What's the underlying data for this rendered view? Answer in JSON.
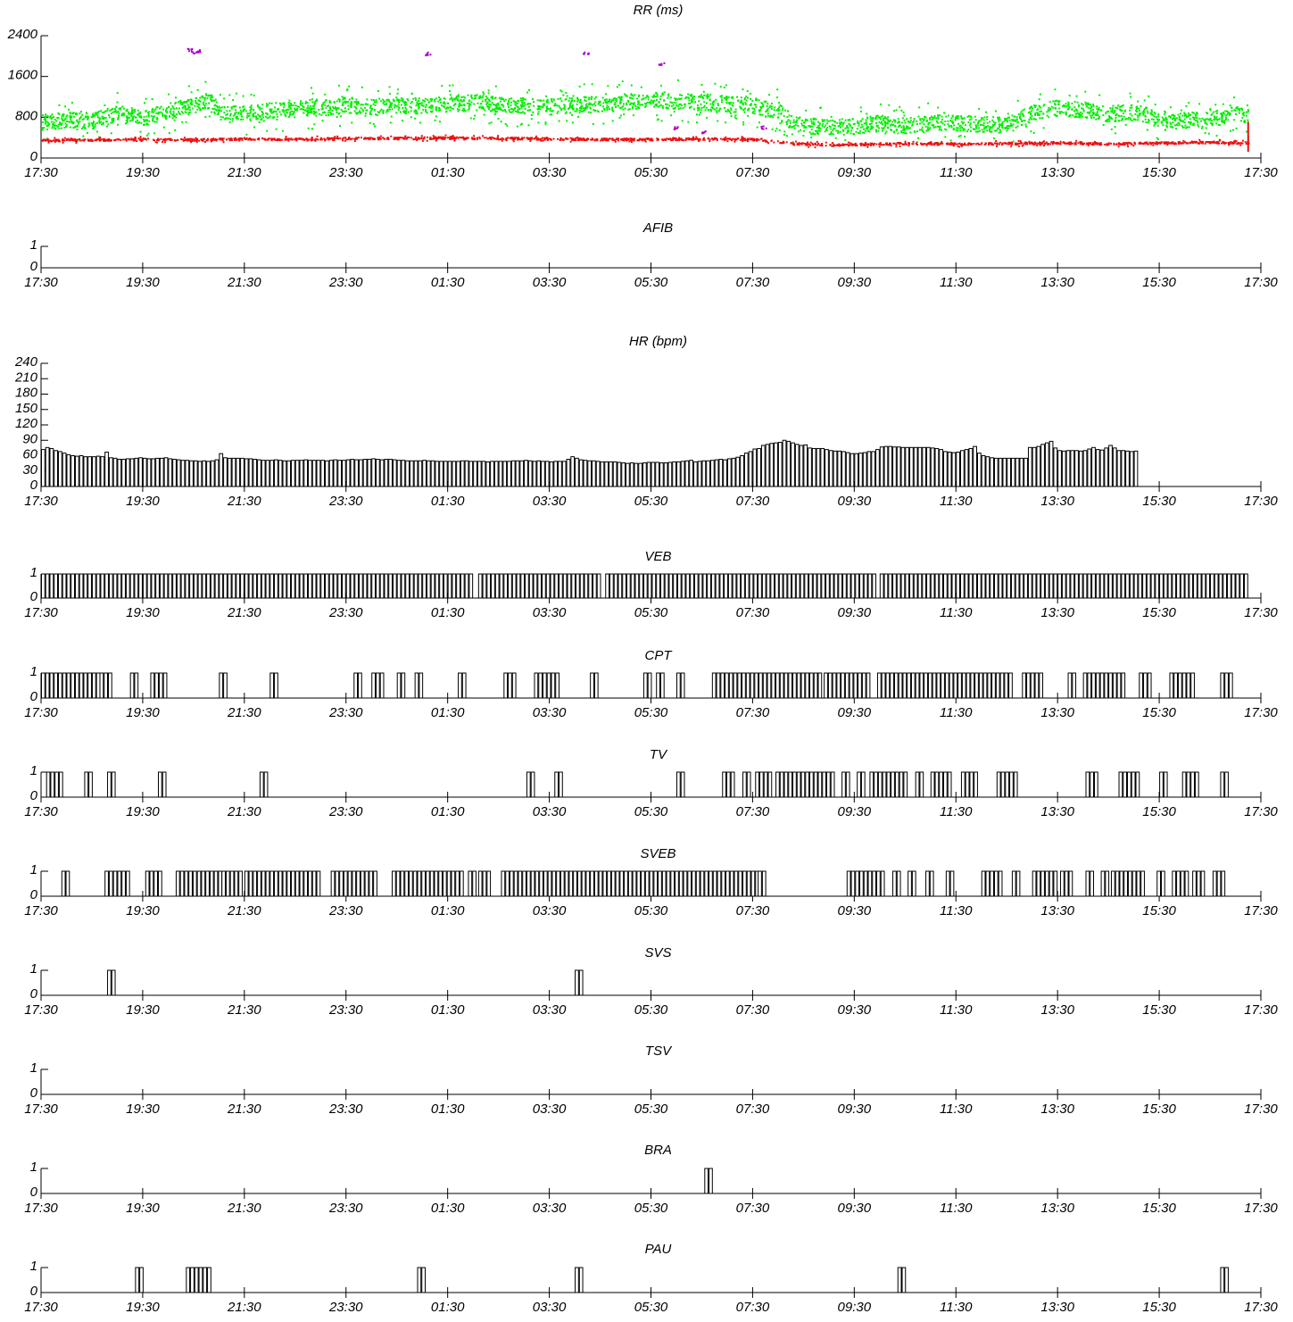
{
  "chart_data": [
    {
      "type": "scatter",
      "title": "RR (ms)",
      "ylim": [
        0,
        2400
      ],
      "yticks": [
        "0",
        "800",
        "1600",
        "2400"
      ],
      "xticks": [
        "17:30",
        "19:30",
        "21:30",
        "23:30",
        "01:30",
        "03:30",
        "05:30",
        "07:30",
        "09:30",
        "11:30",
        "13:30",
        "15:30",
        "17:30"
      ],
      "xlim_hours": [
        0,
        24
      ],
      "data_end_hour": 23.75,
      "colors": {
        "normal": "#00ee00",
        "ventricular": "#ee1111",
        "supraventricular": "#aa00cc"
      },
      "series": [
        {
          "color_key": "normal",
          "values": [
            [
              0.0,
              720
            ],
            [
              0.5,
              760
            ],
            [
              1.0,
              740
            ],
            [
              1.5,
              900
            ],
            [
              2.0,
              800
            ],
            [
              2.5,
              920
            ],
            [
              3.0,
              1050
            ],
            [
              3.3,
              1150
            ],
            [
              3.5,
              900
            ],
            [
              4.0,
              880
            ],
            [
              4.5,
              950
            ],
            [
              5.0,
              960
            ],
            [
              5.5,
              1000
            ],
            [
              6.0,
              1050
            ],
            [
              6.5,
              1010
            ],
            [
              7.0,
              1020
            ],
            [
              7.5,
              1050
            ],
            [
              8.0,
              1080
            ],
            [
              8.5,
              1100
            ],
            [
              9.0,
              1060
            ],
            [
              9.5,
              1040
            ],
            [
              10.0,
              1020
            ],
            [
              10.5,
              1050
            ],
            [
              11.0,
              1080
            ],
            [
              11.5,
              1120
            ],
            [
              12.0,
              1150
            ],
            [
              12.5,
              1130
            ],
            [
              13.0,
              1100
            ],
            [
              13.5,
              1080
            ],
            [
              14.0,
              1050
            ],
            [
              14.5,
              950
            ],
            [
              14.8,
              700
            ],
            [
              15.0,
              650
            ],
            [
              15.5,
              620
            ],
            [
              16.0,
              640
            ],
            [
              16.5,
              700
            ],
            [
              17.0,
              640
            ],
            [
              17.5,
              720
            ],
            [
              18.0,
              700
            ],
            [
              18.5,
              680
            ],
            [
              19.0,
              650
            ],
            [
              19.5,
              900
            ],
            [
              20.0,
              1000
            ],
            [
              20.5,
              960
            ],
            [
              21.0,
              880
            ],
            [
              21.5,
              920
            ],
            [
              22.0,
              780
            ],
            [
              22.5,
              760
            ],
            [
              23.0,
              760
            ],
            [
              23.5,
              900
            ],
            [
              23.75,
              820
            ]
          ]
        },
        {
          "color_key": "ventricular",
          "values": [
            [
              0.0,
              360
            ],
            [
              1.0,
              370
            ],
            [
              2.0,
              380
            ],
            [
              3.0,
              370
            ],
            [
              4.0,
              390
            ],
            [
              5.0,
              380
            ],
            [
              6.0,
              400
            ],
            [
              7.0,
              400
            ],
            [
              8.0,
              410
            ],
            [
              9.0,
              400
            ],
            [
              10.0,
              390
            ],
            [
              11.0,
              380
            ],
            [
              12.0,
              380
            ],
            [
              13.0,
              390
            ],
            [
              14.0,
              380
            ],
            [
              14.8,
              300
            ],
            [
              15.5,
              270
            ],
            [
              16.0,
              280
            ],
            [
              17.0,
              300
            ],
            [
              18.0,
              290
            ],
            [
              19.0,
              300
            ],
            [
              20.0,
              310
            ],
            [
              20.5,
              300
            ],
            [
              21.0,
              290
            ],
            [
              22.0,
              310
            ],
            [
              23.0,
              320
            ],
            [
              23.75,
              310
            ]
          ]
        },
        {
          "color_key": "supraventricular",
          "values": [
            [
              2.9,
              2130
            ],
            [
              3.0,
              2080
            ],
            [
              3.1,
              2110
            ],
            [
              7.6,
              2060
            ],
            [
              10.7,
              2080
            ],
            [
              12.2,
              1870
            ],
            [
              12.5,
              600
            ],
            [
              13.0,
              520
            ],
            [
              14.2,
              610
            ]
          ]
        }
      ]
    },
    {
      "type": "bar",
      "title": "AFIB",
      "ylim": [
        0,
        1
      ],
      "yticks": [
        "0",
        "1"
      ],
      "xticks": [
        "17:30",
        "19:30",
        "21:30",
        "23:30",
        "01:30",
        "03:30",
        "05:30",
        "07:30",
        "09:30",
        "11:30",
        "13:30",
        "15:30",
        "17:30"
      ],
      "bin_minutes": 5,
      "event_bins": []
    },
    {
      "type": "bar",
      "title": "HR (bpm)",
      "ylim": [
        0,
        240
      ],
      "yticks": [
        "0",
        "30",
        "60",
        "90",
        "120",
        "150",
        "180",
        "210",
        "240"
      ],
      "xticks": [
        "17:30",
        "19:30",
        "21:30",
        "23:30",
        "01:30",
        "03:30",
        "05:30",
        "07:30",
        "09:30",
        "11:30",
        "13:30",
        "15:30",
        "17:30"
      ],
      "bin_minutes": 5,
      "x_start_hour": 0,
      "values": [
        72,
        76,
        74,
        70,
        68,
        65,
        62,
        60,
        59,
        60,
        58,
        58,
        58,
        59,
        58,
        67,
        56,
        55,
        53,
        53,
        54,
        54,
        55,
        56,
        55,
        54,
        54,
        55,
        55,
        56,
        54,
        53,
        52,
        51,
        51,
        50,
        50,
        49,
        50,
        49,
        50,
        52,
        64,
        56,
        55,
        55,
        55,
        55,
        54,
        54,
        53,
        52,
        51,
        51,
        51,
        52,
        51,
        50,
        50,
        51,
        51,
        51,
        52,
        51,
        51,
        51,
        51,
        50,
        51,
        52,
        51,
        51,
        52,
        53,
        52,
        52,
        53,
        53,
        54,
        53,
        52,
        53,
        53,
        52,
        51,
        51,
        50,
        50,
        50,
        50,
        51,
        50,
        50,
        49,
        49,
        49,
        49,
        49,
        49,
        50,
        50,
        49,
        49,
        49,
        49,
        48,
        49,
        49,
        49,
        49,
        49,
        50,
        50,
        50,
        51,
        50,
        49,
        50,
        49,
        49,
        48,
        49,
        49,
        49,
        53,
        58,
        55,
        52,
        51,
        50,
        50,
        49,
        48,
        48,
        48,
        48,
        47,
        46,
        45,
        46,
        45,
        45,
        46,
        47,
        47,
        47,
        46,
        46,
        47,
        48,
        48,
        49,
        50,
        51,
        48,
        49,
        50,
        50,
        51,
        52,
        53,
        52,
        54,
        55,
        57,
        60,
        65,
        68,
        73,
        74,
        80,
        82,
        84,
        85,
        86,
        90,
        88,
        85,
        82,
        80,
        81,
        75,
        74,
        74,
        74,
        72,
        70,
        69,
        69,
        68,
        66,
        64,
        64,
        65,
        66,
        68,
        68,
        72,
        77,
        78,
        78,
        77,
        77,
        76,
        76,
        76,
        76,
        76,
        76,
        76,
        75,
        74,
        72,
        68,
        67,
        66,
        67,
        70,
        72,
        74,
        78,
        65,
        60,
        58,
        56,
        55,
        55,
        55,
        55,
        55,
        55,
        55,
        55,
        76,
        76,
        78,
        82,
        85,
        88,
        75,
        70,
        69,
        70,
        70,
        70,
        69,
        70,
        73,
        76,
        72,
        71,
        75,
        80,
        75,
        70,
        70,
        69,
        68,
        69
      ]
    },
    {
      "type": "bar",
      "title": "VEB",
      "ylim": [
        0,
        1
      ],
      "yticks": [
        "0",
        "1"
      ],
      "xticks": [
        "17:30",
        "19:30",
        "21:30",
        "23:30",
        "01:30",
        "03:30",
        "05:30",
        "07:30",
        "09:30",
        "11:30",
        "13:30",
        "15:30",
        "17:30"
      ],
      "bin_minutes": 5,
      "segments_hours": [
        [
          0.0,
          8.5
        ],
        [
          8.6,
          11.0
        ],
        [
          11.1,
          16.4
        ],
        [
          16.5,
          23.75
        ]
      ]
    },
    {
      "type": "bar",
      "title": "CPT",
      "ylim": [
        0,
        1
      ],
      "yticks": [
        "0",
        "1"
      ],
      "xticks": [
        "17:30",
        "19:30",
        "21:30",
        "23:30",
        "01:30",
        "03:30",
        "05:30",
        "07:30",
        "09:30",
        "11:30",
        "13:30",
        "15:30",
        "17:30"
      ],
      "bin_minutes": 5,
      "segments_hours": [
        [
          0.0,
          1.1
        ],
        [
          1.15,
          1.35
        ],
        [
          1.75,
          1.85
        ],
        [
          2.15,
          2.45
        ],
        [
          3.5,
          3.6
        ],
        [
          4.5,
          4.6
        ],
        [
          6.15,
          6.25
        ],
        [
          6.5,
          6.75
        ],
        [
          7.0,
          7.1
        ],
        [
          7.35,
          7.45
        ],
        [
          8.2,
          8.3
        ],
        [
          9.1,
          9.35
        ],
        [
          9.7,
          10.2
        ],
        [
          10.8,
          10.9
        ],
        [
          11.85,
          11.95
        ],
        [
          12.1,
          12.2
        ],
        [
          12.5,
          12.6
        ],
        [
          13.2,
          14.65
        ],
        [
          14.7,
          15.35
        ],
        [
          15.4,
          16.3
        ],
        [
          16.45,
          19.1
        ],
        [
          19.3,
          19.7
        ],
        [
          20.2,
          20.3
        ],
        [
          20.5,
          21.3
        ],
        [
          21.6,
          21.8
        ],
        [
          22.2,
          22.7
        ],
        [
          23.2,
          23.45
        ]
      ]
    },
    {
      "type": "bar",
      "title": "TV",
      "ylim": [
        0,
        1
      ],
      "yticks": [
        "0",
        "1"
      ],
      "xticks": [
        "17:30",
        "19:30",
        "21:30",
        "23:30",
        "01:30",
        "03:30",
        "05:30",
        "07:30",
        "09:30",
        "11:30",
        "13:30",
        "15:30",
        "17:30"
      ],
      "bin_minutes": 5,
      "segments_hours": [
        [
          0.1,
          0.4
        ],
        [
          0.85,
          0.95
        ],
        [
          1.3,
          1.4
        ],
        [
          2.3,
          2.4
        ],
        [
          4.3,
          4.4
        ],
        [
          9.55,
          9.65
        ],
        [
          10.1,
          10.2
        ],
        [
          12.5,
          12.6
        ],
        [
          13.4,
          13.65
        ],
        [
          13.8,
          13.9
        ],
        [
          14.05,
          14.35
        ],
        [
          14.45,
          15.55
        ],
        [
          15.75,
          15.85
        ],
        [
          16.05,
          16.15
        ],
        [
          16.3,
          17.05
        ],
        [
          17.2,
          17.3
        ],
        [
          17.5,
          17.9
        ],
        [
          18.1,
          18.4
        ],
        [
          18.8,
          19.15
        ],
        [
          20.55,
          20.75
        ],
        [
          21.2,
          21.6
        ],
        [
          22.0,
          22.1
        ],
        [
          22.45,
          22.75
        ],
        [
          23.2,
          23.3
        ]
      ]
    },
    {
      "type": "bar",
      "title": "SVEB",
      "ylim": [
        0,
        1
      ],
      "yticks": [
        "0",
        "1"
      ],
      "xticks": [
        "17:30",
        "19:30",
        "21:30",
        "23:30",
        "01:30",
        "03:30",
        "05:30",
        "07:30",
        "09:30",
        "11:30",
        "13:30",
        "15:30",
        "17:30"
      ],
      "bin_minutes": 5,
      "segments_hours": [
        [
          0.4,
          0.5
        ],
        [
          1.25,
          1.75
        ],
        [
          2.05,
          2.35
        ],
        [
          2.65,
          3.5
        ],
        [
          3.55,
          3.95
        ],
        [
          4.0,
          5.45
        ],
        [
          5.7,
          6.55
        ],
        [
          6.9,
          8.3
        ],
        [
          8.4,
          8.5
        ],
        [
          8.6,
          8.8
        ],
        [
          9.05,
          14.1
        ],
        [
          14.1,
          14.2
        ],
        [
          15.85,
          16.6
        ],
        [
          16.75,
          16.85
        ],
        [
          17.05,
          17.15
        ],
        [
          17.4,
          17.5
        ],
        [
          17.8,
          17.9
        ],
        [
          18.5,
          18.85
        ],
        [
          19.1,
          19.2
        ],
        [
          19.5,
          20.0
        ],
        [
          20.05,
          20.3
        ],
        [
          20.55,
          20.65
        ],
        [
          20.85,
          20.95
        ],
        [
          21.05,
          21.65
        ],
        [
          21.95,
          22.05
        ],
        [
          22.25,
          22.55
        ],
        [
          22.65,
          22.85
        ],
        [
          23.05,
          23.3
        ]
      ]
    },
    {
      "type": "bar",
      "title": "SVS",
      "ylim": [
        0,
        1
      ],
      "yticks": [
        "0",
        "1"
      ],
      "xticks": [
        "17:30",
        "19:30",
        "21:30",
        "23:30",
        "01:30",
        "03:30",
        "05:30",
        "07:30",
        "09:30",
        "11:30",
        "13:30",
        "15:30",
        "17:30"
      ],
      "bin_minutes": 5,
      "segments_hours": [
        [
          1.3,
          1.4
        ],
        [
          10.5,
          10.6
        ]
      ]
    },
    {
      "type": "bar",
      "title": "TSV",
      "ylim": [
        0,
        1
      ],
      "yticks": [
        "0",
        "1"
      ],
      "xticks": [
        "17:30",
        "19:30",
        "21:30",
        "23:30",
        "01:30",
        "03:30",
        "05:30",
        "07:30",
        "09:30",
        "11:30",
        "13:30",
        "15:30",
        "17:30"
      ],
      "bin_minutes": 5,
      "segments_hours": []
    },
    {
      "type": "bar",
      "title": "BRA",
      "ylim": [
        0,
        1
      ],
      "yticks": [
        "0",
        "1"
      ],
      "xticks": [
        "17:30",
        "19:30",
        "21:30",
        "23:30",
        "01:30",
        "03:30",
        "05:30",
        "07:30",
        "09:30",
        "11:30",
        "13:30",
        "15:30",
        "17:30"
      ],
      "bin_minutes": 5,
      "segments_hours": [
        [
          13.05,
          13.15
        ]
      ]
    },
    {
      "type": "bar",
      "title": "PAU",
      "ylim": [
        0,
        1
      ],
      "yticks": [
        "0",
        "1"
      ],
      "xticks": [
        "17:30",
        "19:30",
        "21:30",
        "23:30",
        "01:30",
        "03:30",
        "05:30",
        "07:30",
        "09:30",
        "11:30",
        "13:30",
        "15:30",
        "17:30"
      ],
      "bin_minutes": 5,
      "segments_hours": [
        [
          1.85,
          1.95
        ],
        [
          2.85,
          3.3
        ],
        [
          7.4,
          7.5
        ],
        [
          10.5,
          10.6
        ],
        [
          16.85,
          16.95
        ],
        [
          23.2,
          23.3
        ]
      ]
    }
  ]
}
